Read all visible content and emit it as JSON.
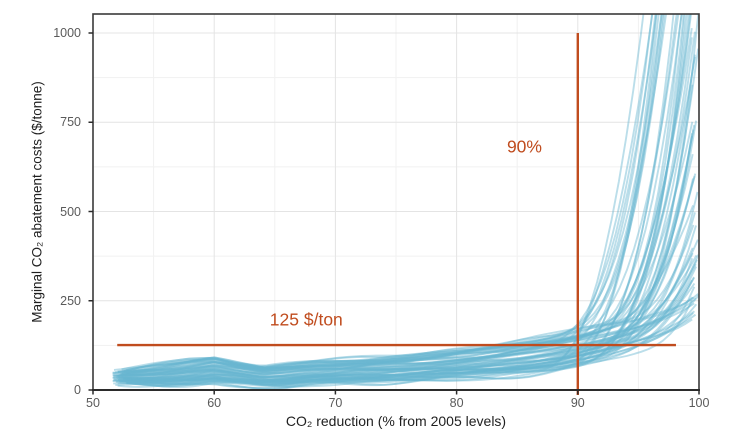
{
  "chart_data": {
    "type": "line",
    "title": "",
    "xlabel": "CO₂ reduction (% from 2005 levels)",
    "ylabel": "Marginal CO₂ abatement costs ($/tonne)",
    "xlim": [
      50,
      100
    ],
    "ylim": [
      0,
      1053
    ],
    "x_ticks": [
      50,
      60,
      70,
      80,
      90,
      100
    ],
    "x_minor_ticks": [
      55,
      65,
      75,
      85,
      95
    ],
    "y_ticks": [
      0,
      250,
      500,
      750,
      1000
    ],
    "y_minor_ticks": [
      125,
      375,
      625,
      875
    ],
    "grid": "major and minor gridlines on, light gray, panel framed with dark border",
    "legend": "none",
    "colors": {
      "curve_stroke": "#69B5D1",
      "annotation_orange": "#C04C1E",
      "grid_major": "#e4e4e4",
      "grid_minor": "#f1f1f1",
      "panel_border": "#3a3a3a",
      "tick_label": "#5a5a5a",
      "axis_title": "#1f1f1f"
    },
    "ensemble": {
      "description": "~70 overlapping semi-transparent light-blue scenario curves; flat band of low abatement costs from 52% to ~86% reduction, then steep exponential rise toward 100%",
      "count": 72,
      "x_grid": [
        52,
        54,
        56,
        58,
        60,
        62,
        64,
        66,
        68,
        70,
        72,
        74,
        76,
        78,
        80,
        82,
        84,
        86,
        88,
        90,
        92,
        94,
        96,
        98,
        100
      ],
      "envelope_low": [
        18,
        13,
        10,
        13,
        20,
        15,
        9,
        7,
        14,
        17,
        19,
        21,
        24,
        27,
        30,
        33,
        37,
        43,
        52,
        63,
        78,
        98,
        122,
        148,
        170
      ],
      "envelope_base_high": [
        52,
        63,
        74,
        86,
        94,
        78,
        66,
        73,
        79,
        84,
        89,
        94,
        99,
        106,
        113,
        121,
        130,
        142,
        155,
        170,
        186,
        202,
        218,
        234,
        250
      ],
      "takeoff_onset_range": [
        86,
        96
      ],
      "end_value_range": [
        210,
        2800
      ],
      "top_envelope_at_90": 320,
      "top_envelope_at_94": 900,
      "opacity": 0.45,
      "stroke_width": 1.9
    },
    "annotations": [
      {
        "kind": "vline",
        "x": 90,
        "y_from": 0,
        "y_to": 1000,
        "label": "90%",
        "label_at": {
          "x": 85.6,
          "y": 682
        },
        "color": "#C04C1E"
      },
      {
        "kind": "hline",
        "y": 126,
        "x_from": 52,
        "x_to": 98.1,
        "label": "125 $/ton",
        "label_at": {
          "x": 67.6,
          "y": 196
        },
        "color": "#C04C1E"
      }
    ]
  }
}
